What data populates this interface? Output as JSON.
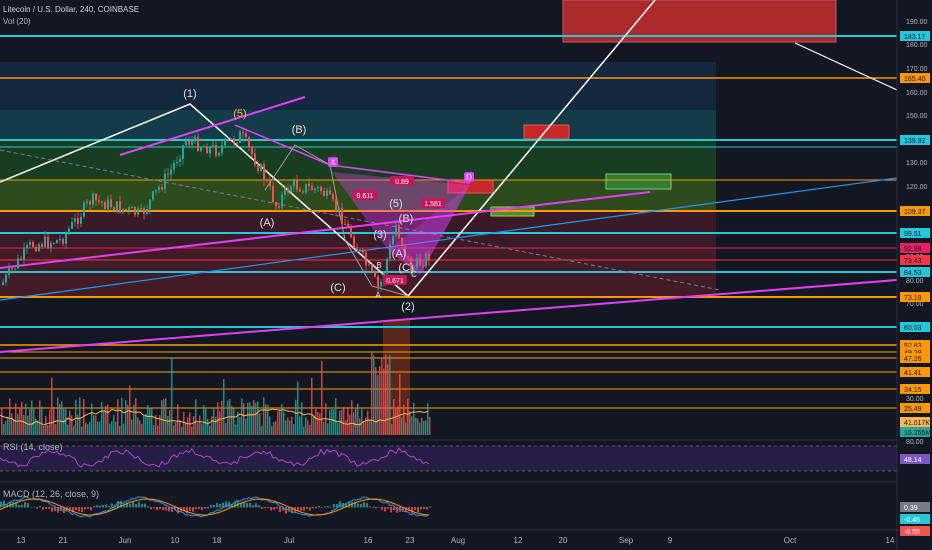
{
  "header": {
    "symbol_title": "Litecoin / U.S. Dollar, 240, COINBASE",
    "volume_label": "Vol (20)"
  },
  "indicators": {
    "rsi_label": "RSI (14, close)",
    "macd_label": "MACD (12, 26, close, 9)"
  },
  "price_axis": {
    "ticks": [
      "190.00",
      "180.00",
      "170.00",
      "160.00",
      "150.00",
      "130.00",
      "120.00",
      "110.00",
      "100.00",
      "90.00",
      "80.00",
      "70.00",
      "60.00",
      "40.00",
      "30.00"
    ],
    "tick_y": [
      21,
      44,
      68,
      92,
      115,
      162,
      186,
      209,
      233,
      256,
      280,
      303,
      327,
      374,
      398
    ]
  },
  "price_badges": [
    {
      "text": "183.17",
      "color": "#26c6da",
      "y": 36
    },
    {
      "text": "165.40",
      "color": "#ff9800",
      "y": 78
    },
    {
      "text": "139.92",
      "color": "#26c6da",
      "y": 140
    },
    {
      "text": "109.37",
      "color": "#ff9800",
      "y": 211
    },
    {
      "text": "99.51",
      "color": "#26c6da",
      "y": 233
    },
    {
      "text": "92.98",
      "color": "#e91e63",
      "y": 248
    },
    {
      "text": "73.43",
      "color": "#f23645",
      "y": 260
    },
    {
      "text": "84.53",
      "color": "#26c6da",
      "y": 272
    },
    {
      "text": "73.19",
      "color": "#ff9800",
      "y": 297
    },
    {
      "text": "60.03",
      "color": "#26c6da",
      "y": 327
    },
    {
      "text": "52.83",
      "color": "#ff9800",
      "y": 345
    },
    {
      "text": "49.29",
      "color": "#ff9800",
      "y": 352
    },
    {
      "text": "47.26",
      "color": "#ff9800",
      "y": 358
    },
    {
      "text": "41.41",
      "color": "#ff9800",
      "y": 372
    },
    {
      "text": "34.15",
      "color": "#ff9800",
      "y": 389
    },
    {
      "text": "25.49",
      "color": "#ff9800",
      "y": 408
    },
    {
      "text": "41.017K",
      "color": "#ffb74d",
      "y": 422
    },
    {
      "text": "16.265M",
      "color": "#26a69a",
      "y": 432
    }
  ],
  "rsi_axis": {
    "ticks": [
      "80.00"
    ],
    "badge": "48.14"
  },
  "macd_axis": {
    "badges": [
      "0.39",
      "-0.46",
      "-0.55"
    ]
  },
  "time_axis": {
    "labels": [
      "13",
      "21",
      "Jun",
      "10",
      "18",
      "Jul",
      "16",
      "23",
      "Aug",
      "12",
      "20",
      "Sep",
      "9",
      "Oct",
      "14"
    ],
    "x": [
      21,
      63,
      125,
      175,
      217,
      289,
      368,
      410,
      458,
      518,
      563,
      626,
      670,
      790,
      890
    ]
  },
  "wave_labels": [
    "(1)",
    "(5)",
    "(B)",
    "(A)",
    "(C)",
    "(3)",
    "(5)",
    "(B)",
    "(A)",
    "(C)",
    "(2)",
    "A",
    "B",
    "C",
    "X",
    "D"
  ],
  "harmonic_ratios": [
    "0.611",
    "0.89",
    "1.581",
    "0.671"
  ],
  "colors": {
    "background": "#131722",
    "cyan": "#26c6da",
    "orange": "#ff9800",
    "magenta": "#e040fb",
    "green": "#26a69a",
    "red": "#ef5350"
  }
}
